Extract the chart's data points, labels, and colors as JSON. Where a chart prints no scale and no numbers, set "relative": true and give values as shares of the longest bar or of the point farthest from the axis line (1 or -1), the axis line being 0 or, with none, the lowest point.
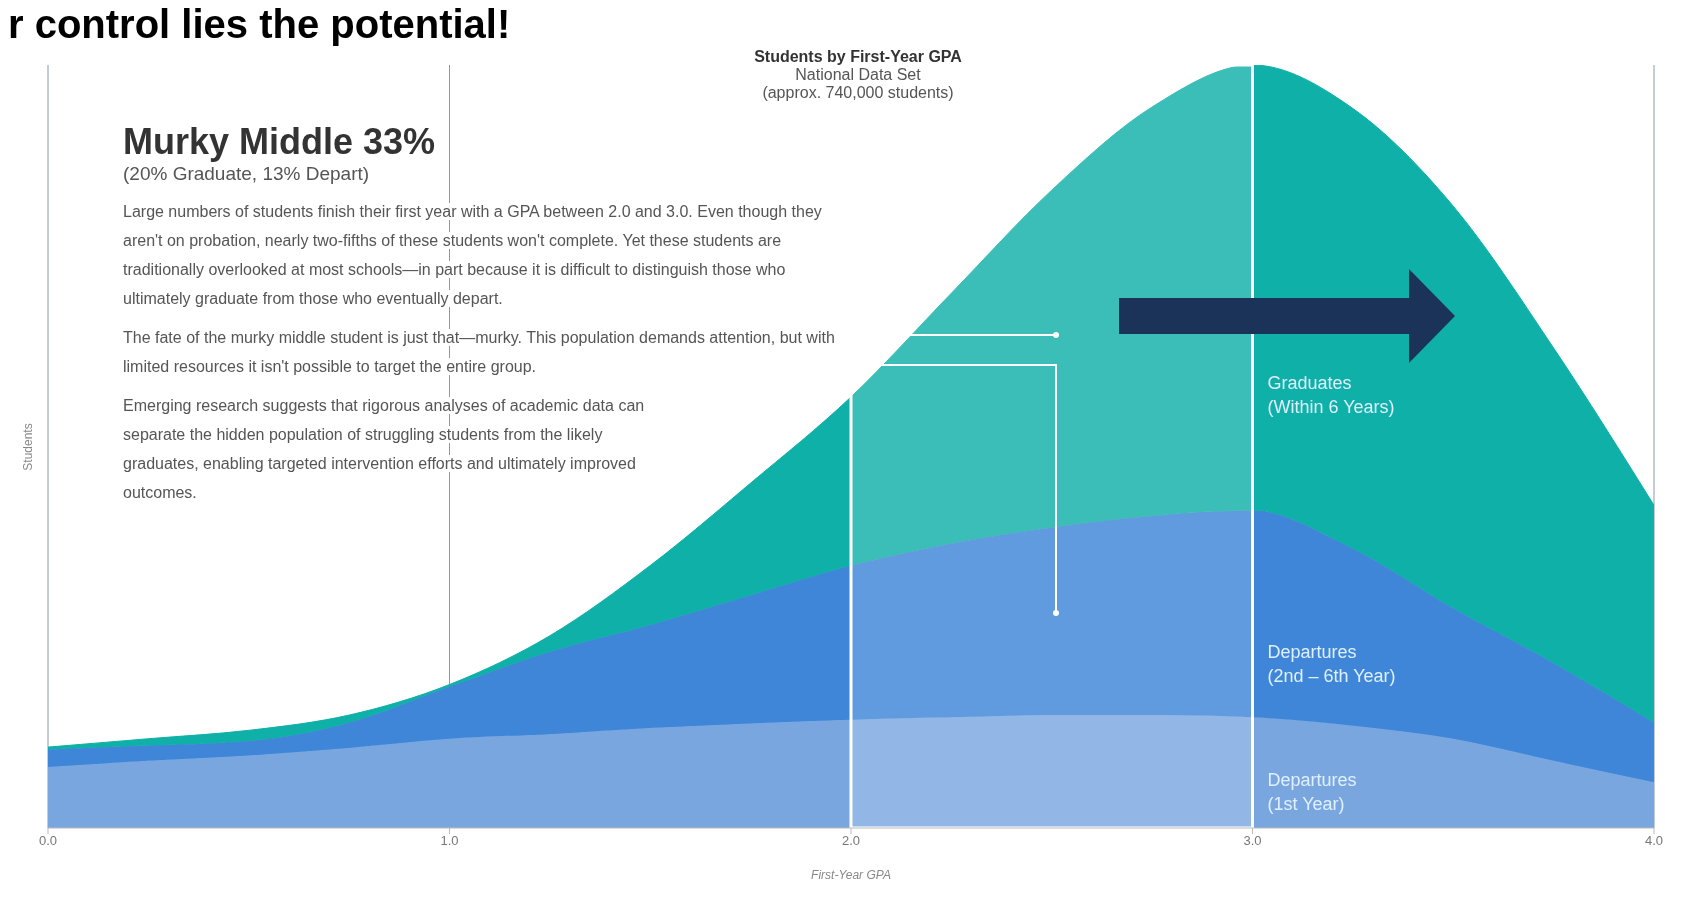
{
  "chart_data": {
    "type": "area",
    "stacked": true,
    "relative": true,
    "title": "Students by First-Year GPA",
    "subtitle": "National Data Set\n(approx. 740,000 students)",
    "xlabel": "First-Year GPA",
    "ylabel": "Students",
    "grid": "x",
    "legend": false,
    "x": [
      0,
      0.25,
      0.5,
      0.75,
      1.0,
      1.25,
      1.5,
      1.75,
      2.0,
      2.25,
      2.5,
      2.75,
      3.0,
      3.25,
      3.5,
      3.75,
      4.0
    ],
    "xlim": [
      0,
      4
    ],
    "xticks": [
      {
        "value": 0,
        "label": "0.0"
      },
      {
        "value": 1,
        "label": "1.0"
      },
      {
        "value": 2,
        "label": "2.0"
      },
      {
        "value": 3,
        "label": "3.0"
      },
      {
        "value": 4,
        "label": "4.0"
      }
    ],
    "series": [
      {
        "name": "Departures\n(1st Year)",
        "color": "#7aa6e0",
        "values": [
          0.08,
          0.088,
          0.095,
          0.105,
          0.117,
          0.123,
          0.131,
          0.137,
          0.142,
          0.145,
          0.148,
          0.148,
          0.145,
          0.134,
          0.117,
          0.088,
          0.06
        ]
      },
      {
        "name": "Departures\n(2nd – 6th Year)",
        "color": "#3f86d8",
        "values": [
          0.023,
          0.02,
          0.019,
          0.033,
          0.068,
          0.108,
          0.135,
          0.168,
          0.202,
          0.228,
          0.246,
          0.261,
          0.271,
          0.232,
          0.171,
          0.128,
          0.078
        ]
      },
      {
        "name": "Graduates\n(Within 6 Years)",
        "color": "#0fb0a8",
        "values": [
          0.003,
          0.009,
          0.014,
          0.01,
          0.003,
          0.021,
          0.078,
          0.147,
          0.221,
          0.328,
          0.442,
          0.536,
          0.584,
          0.577,
          0.527,
          0.413,
          0.285
        ]
      }
    ],
    "bands": [
      {
        "axis": "x",
        "from": 2,
        "to": 3,
        "color": "#ffffff"
      }
    ],
    "annotations": [
      "r control lies the potential!",
      "Murky Middle 33%",
      "(20% Graduate, 13% Depart)",
      "Large numbers of students finish their first year with a GPA between 2.0 and 3.0. Even though they aren't on probation, nearly two-fifths of these students won't complete. Yet these students are traditionally overlooked at most schools—in part because it is difficult to distinguish those who ultimately graduate from those who eventually depart.",
      "The fate of the murky middle student is just that—murky. This population demands attention, but with limited resources it isn't possible to target the entire group.",
      "Emerging research suggests that rigorous analyses of academic data can separate the hidden population of struggling students from the likely graduates, enabling targeted intervention efforts and ultimately improved outcomes."
    ]
  }
}
